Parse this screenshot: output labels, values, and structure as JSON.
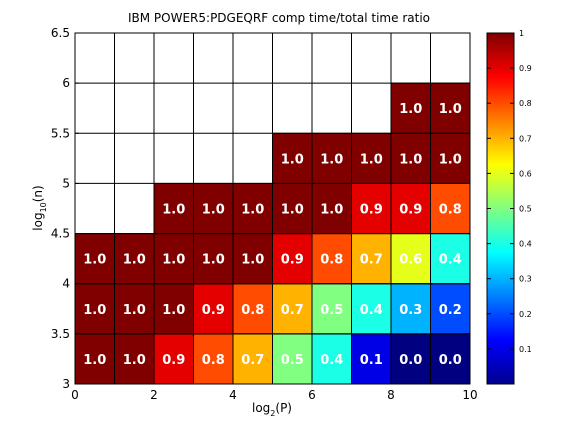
{
  "chart_data": {
    "type": "heatmap",
    "title": "IBM POWER5:PDGEQRF comp time/total time ratio",
    "xlabel": {
      "base": "log",
      "sub": "2",
      "arg": "(P)"
    },
    "ylabel": {
      "base": "log",
      "sub": "10",
      "arg": "(n)"
    },
    "xlim": [
      0,
      10
    ],
    "ylim": [
      3,
      6.5
    ],
    "x_ticks": [
      "0",
      "2",
      "4",
      "6",
      "8",
      "10"
    ],
    "y_ticks": [
      "3",
      "3.5",
      "4",
      "4.5",
      "5",
      "5.5",
      "6",
      "6.5"
    ],
    "colorbar": {
      "colormap": "jet",
      "range": [
        0,
        1
      ],
      "ticks": [
        "0.1",
        "0.2",
        "0.3",
        "0.4",
        "0.5",
        "0.6",
        "0.7",
        "0.8",
        "0.9",
        "1"
      ]
    },
    "cells": [
      {
        "x": 0,
        "y": 3.0,
        "value": 1.0,
        "label": "1.0"
      },
      {
        "x": 1,
        "y": 3.0,
        "value": 1.0,
        "label": "1.0"
      },
      {
        "x": 2,
        "y": 3.0,
        "value": 0.9,
        "label": "0.9"
      },
      {
        "x": 3,
        "y": 3.0,
        "value": 0.8,
        "label": "0.8"
      },
      {
        "x": 4,
        "y": 3.0,
        "value": 0.7,
        "label": "0.7"
      },
      {
        "x": 5,
        "y": 3.0,
        "value": 0.5,
        "label": "0.5"
      },
      {
        "x": 6,
        "y": 3.0,
        "value": 0.4,
        "label": "0.4"
      },
      {
        "x": 7,
        "y": 3.0,
        "value": 0.1,
        "label": "0.1"
      },
      {
        "x": 8,
        "y": 3.0,
        "value": 0.0,
        "label": "0.0"
      },
      {
        "x": 9,
        "y": 3.0,
        "value": 0.0,
        "label": "0.0"
      },
      {
        "x": 0,
        "y": 3.5,
        "value": 1.0,
        "label": "1.0"
      },
      {
        "x": 1,
        "y": 3.5,
        "value": 1.0,
        "label": "1.0"
      },
      {
        "x": 2,
        "y": 3.5,
        "value": 1.0,
        "label": "1.0"
      },
      {
        "x": 3,
        "y": 3.5,
        "value": 0.9,
        "label": "0.9"
      },
      {
        "x": 4,
        "y": 3.5,
        "value": 0.8,
        "label": "0.8"
      },
      {
        "x": 5,
        "y": 3.5,
        "value": 0.7,
        "label": "0.7"
      },
      {
        "x": 6,
        "y": 3.5,
        "value": 0.5,
        "label": "0.5"
      },
      {
        "x": 7,
        "y": 3.5,
        "value": 0.4,
        "label": "0.4"
      },
      {
        "x": 8,
        "y": 3.5,
        "value": 0.3,
        "label": "0.3"
      },
      {
        "x": 9,
        "y": 3.5,
        "value": 0.2,
        "label": "0.2"
      },
      {
        "x": 0,
        "y": 4.0,
        "value": 1.0,
        "label": "1.0"
      },
      {
        "x": 1,
        "y": 4.0,
        "value": 1.0,
        "label": "1.0"
      },
      {
        "x": 2,
        "y": 4.0,
        "value": 1.0,
        "label": "1.0"
      },
      {
        "x": 3,
        "y": 4.0,
        "value": 1.0,
        "label": "1.0"
      },
      {
        "x": 4,
        "y": 4.0,
        "value": 1.0,
        "label": "1.0"
      },
      {
        "x": 5,
        "y": 4.0,
        "value": 0.9,
        "label": "0.9"
      },
      {
        "x": 6,
        "y": 4.0,
        "value": 0.8,
        "label": "0.8"
      },
      {
        "x": 7,
        "y": 4.0,
        "value": 0.7,
        "label": "0.7"
      },
      {
        "x": 8,
        "y": 4.0,
        "value": 0.6,
        "label": "0.6"
      },
      {
        "x": 9,
        "y": 4.0,
        "value": 0.4,
        "label": "0.4"
      },
      {
        "x": 2,
        "y": 4.5,
        "value": 1.0,
        "label": "1.0"
      },
      {
        "x": 3,
        "y": 4.5,
        "value": 1.0,
        "label": "1.0"
      },
      {
        "x": 4,
        "y": 4.5,
        "value": 1.0,
        "label": "1.0"
      },
      {
        "x": 5,
        "y": 4.5,
        "value": 1.0,
        "label": "1.0"
      },
      {
        "x": 6,
        "y": 4.5,
        "value": 1.0,
        "label": "1.0"
      },
      {
        "x": 7,
        "y": 4.5,
        "value": 0.9,
        "label": "0.9"
      },
      {
        "x": 8,
        "y": 4.5,
        "value": 0.9,
        "label": "0.9"
      },
      {
        "x": 9,
        "y": 4.5,
        "value": 0.8,
        "label": "0.8"
      },
      {
        "x": 5,
        "y": 5.0,
        "value": 1.0,
        "label": "1.0"
      },
      {
        "x": 6,
        "y": 5.0,
        "value": 1.0,
        "label": "1.0"
      },
      {
        "x": 7,
        "y": 5.0,
        "value": 1.0,
        "label": "1.0"
      },
      {
        "x": 8,
        "y": 5.0,
        "value": 1.0,
        "label": "1.0"
      },
      {
        "x": 9,
        "y": 5.0,
        "value": 1.0,
        "label": "1.0"
      },
      {
        "x": 8,
        "y": 5.5,
        "value": 1.0,
        "label": "1.0"
      },
      {
        "x": 9,
        "y": 5.5,
        "value": 1.0,
        "label": "1.0"
      }
    ]
  }
}
